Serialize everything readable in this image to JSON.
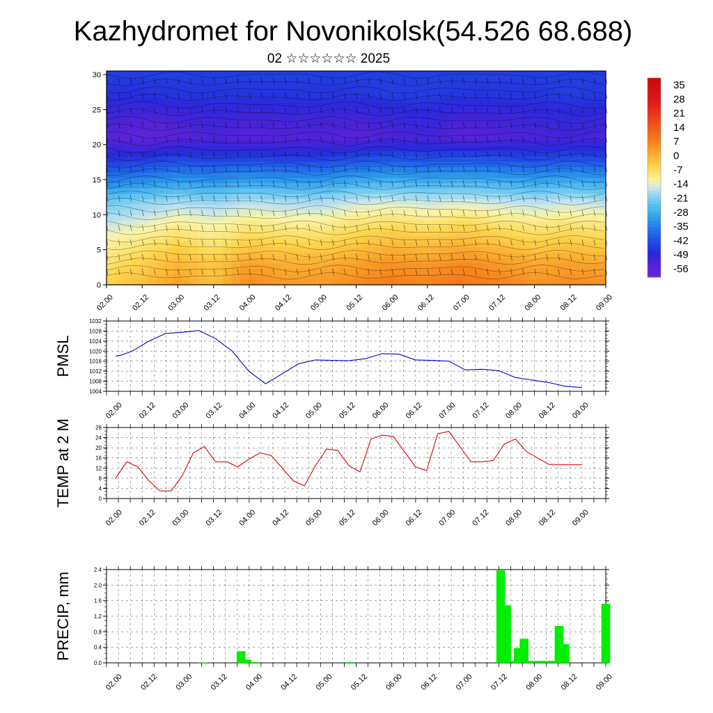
{
  "title": "Kazhydromet for Novonikolsk(54.526 68.688)",
  "subtitle": "02 ☆☆☆☆☆☆ 2025",
  "time_labels": [
    "02.00",
    "02.12",
    "03.00",
    "03.12",
    "04.00",
    "04.12",
    "05.00",
    "05.12",
    "06.00",
    "06.12",
    "07.00",
    "07.12",
    "08.00",
    "08.12",
    "09.00"
  ],
  "colorbar": {
    "labels": [
      "35",
      "28",
      "21",
      "14",
      "7",
      "0",
      "-7",
      "-14",
      "-21",
      "-28",
      "-35",
      "-42",
      "-49",
      "-56"
    ],
    "colors": [
      "#e8c8c8",
      "#e21a1a",
      "#f2561a",
      "#f88f23",
      "#fbc545",
      "#fbf6a3",
      "#b8d8ee",
      "#4db7eb",
      "#1f6fe8",
      "#2231d8",
      "#5f2bd8",
      "#8e3ae0"
    ]
  },
  "chart_data": [
    {
      "type": "heatmap",
      "description_free": true,
      "yticks": [
        0,
        5,
        10,
        15,
        20,
        25,
        30
      ],
      "ylim": [
        0,
        30.5
      ],
      "xlim": [
        0,
        84
      ],
      "value_range": [
        -56,
        35
      ],
      "levels": [
        0,
        3,
        6,
        9,
        12,
        15,
        18,
        21,
        24,
        27,
        30
      ],
      "columns_x": [
        0,
        6,
        12,
        18,
        24,
        30,
        36,
        42,
        48,
        54,
        60,
        66,
        72,
        78,
        84
      ],
      "values": [
        [
          -5,
          -2,
          2,
          -2,
          5,
          3,
          3,
          5,
          7,
          6,
          8,
          6,
          4,
          5,
          4
        ],
        [
          -8,
          -5,
          -1,
          -4,
          2,
          0,
          0,
          2,
          4,
          3,
          5,
          3,
          1,
          2,
          1
        ],
        [
          -11,
          -9,
          -6,
          -9,
          -5,
          -6,
          -6,
          -4,
          -2,
          -3,
          -1,
          -3,
          -5,
          -4,
          -5
        ],
        [
          -16,
          -14,
          -11,
          -13,
          -10,
          -11,
          -11,
          -9,
          -8,
          -9,
          -7,
          -9,
          -10,
          -9,
          -10
        ],
        [
          -22,
          -20,
          -18,
          -19,
          -17,
          -18,
          -18,
          -16,
          -15,
          -16,
          -15,
          -16,
          -17,
          -16,
          -17
        ],
        [
          -34,
          -32,
          -30,
          -31,
          -29,
          -30,
          -30,
          -28,
          -27,
          -28,
          -27,
          -28,
          -29,
          -28,
          -29
        ],
        [
          -44,
          -43,
          -41,
          -42,
          -41,
          -42,
          -42,
          -40,
          -39,
          -40,
          -39,
          -40,
          -41,
          -40,
          -41
        ],
        [
          -51,
          -54,
          -52,
          -50,
          -52,
          -51,
          -51,
          -52,
          -50,
          -49,
          -52,
          -51,
          -50,
          -49,
          -50
        ],
        [
          -48,
          -50,
          -49,
          -47,
          -49,
          -48,
          -48,
          -49,
          -47,
          -46,
          -49,
          -48,
          -47,
          -46,
          -47
        ],
        [
          -44,
          -44,
          -43,
          -43,
          -43,
          -43,
          -43,
          -43,
          -42,
          -42,
          -43,
          -43,
          -43,
          -42,
          -43
        ],
        [
          -42,
          -42,
          -42,
          -42,
          -42,
          -42,
          -42,
          -42,
          -42,
          -42,
          -42,
          -42,
          -42,
          -42,
          -42
        ]
      ]
    },
    {
      "type": "line",
      "ylabel": "PMSL",
      "ylim": [
        1004,
        1032
      ],
      "yticks": [
        1004,
        1008,
        1012,
        1016,
        1020,
        1024,
        1028,
        1032
      ],
      "xlim": [
        0,
        84
      ],
      "series": [
        {
          "color": "#0000cc",
          "x": [
            0,
            1,
            3,
            6,
            9,
            12,
            15,
            18,
            21,
            24,
            27,
            30,
            33,
            36,
            39,
            42,
            45,
            48,
            51,
            54,
            57,
            60,
            63,
            66,
            69,
            72,
            75,
            78,
            81,
            84
          ],
          "values": [
            1018,
            1018.4,
            1020,
            1024,
            1027,
            1027.5,
            1028.2,
            1025,
            1020,
            1012,
            1007,
            1011,
            1015,
            1016.5,
            1016.3,
            1016.2,
            1017,
            1019,
            1018.8,
            1016.5,
            1016.3,
            1016,
            1012.5,
            1012.8,
            1012.2,
            1009.5,
            1008.5,
            1007.5,
            1006,
            1005.5
          ]
        }
      ]
    },
    {
      "type": "line",
      "ylabel": "TEMP at 2 M",
      "ylim": [
        0,
        28
      ],
      "yticks": [
        0,
        4,
        8,
        12,
        16,
        20,
        24,
        28
      ],
      "xlim": [
        0,
        84
      ],
      "series": [
        {
          "color": "#dd0000",
          "x": [
            0,
            2,
            4,
            6,
            8,
            10,
            12,
            14,
            16,
            18,
            20,
            22,
            24,
            26,
            28,
            30,
            32,
            34,
            36,
            38,
            40,
            42,
            44,
            46,
            48,
            50,
            52,
            54,
            56,
            58,
            60,
            62,
            64,
            66,
            68,
            70,
            72,
            74,
            76,
            78,
            80,
            82,
            84
          ],
          "values": [
            8,
            14.5,
            12.5,
            7,
            3,
            3,
            9,
            18,
            20.5,
            14.5,
            14.5,
            12.5,
            15.5,
            18,
            17,
            12,
            7,
            5,
            13,
            19.5,
            19,
            13,
            10.5,
            23.5,
            25,
            24.5,
            18.5,
            12.5,
            11,
            25.5,
            26.5,
            20.5,
            14.5,
            14.5,
            15,
            21.5,
            23.5,
            18.5,
            16,
            13.5,
            13.3,
            13.3,
            13.3
          ]
        }
      ]
    },
    {
      "type": "bar",
      "ylabel": "PRECIP, mm",
      "ylim": [
        0,
        2.4
      ],
      "yticks": [
        "0.0",
        "0.4",
        "0.8",
        "1.2",
        "1.6",
        "2.0",
        "2.4"
      ],
      "xlim": [
        0,
        84
      ],
      "color": "#00ee00",
      "bar_width_hours": 1.5,
      "x": [
        15,
        21.5,
        22.5,
        24,
        40,
        66,
        67,
        68,
        69,
        70,
        71,
        72,
        73,
        74,
        75,
        76,
        77,
        78,
        79,
        84
      ],
      "values": [
        0.01,
        0.3,
        0.08,
        0.02,
        0.02,
        2.38,
        1.48,
        0.05,
        0.38,
        0.62,
        0.05,
        0.05,
        0.05,
        0.05,
        0.05,
        0.95,
        0.48,
        0.0,
        0.0,
        1.52
      ]
    }
  ]
}
